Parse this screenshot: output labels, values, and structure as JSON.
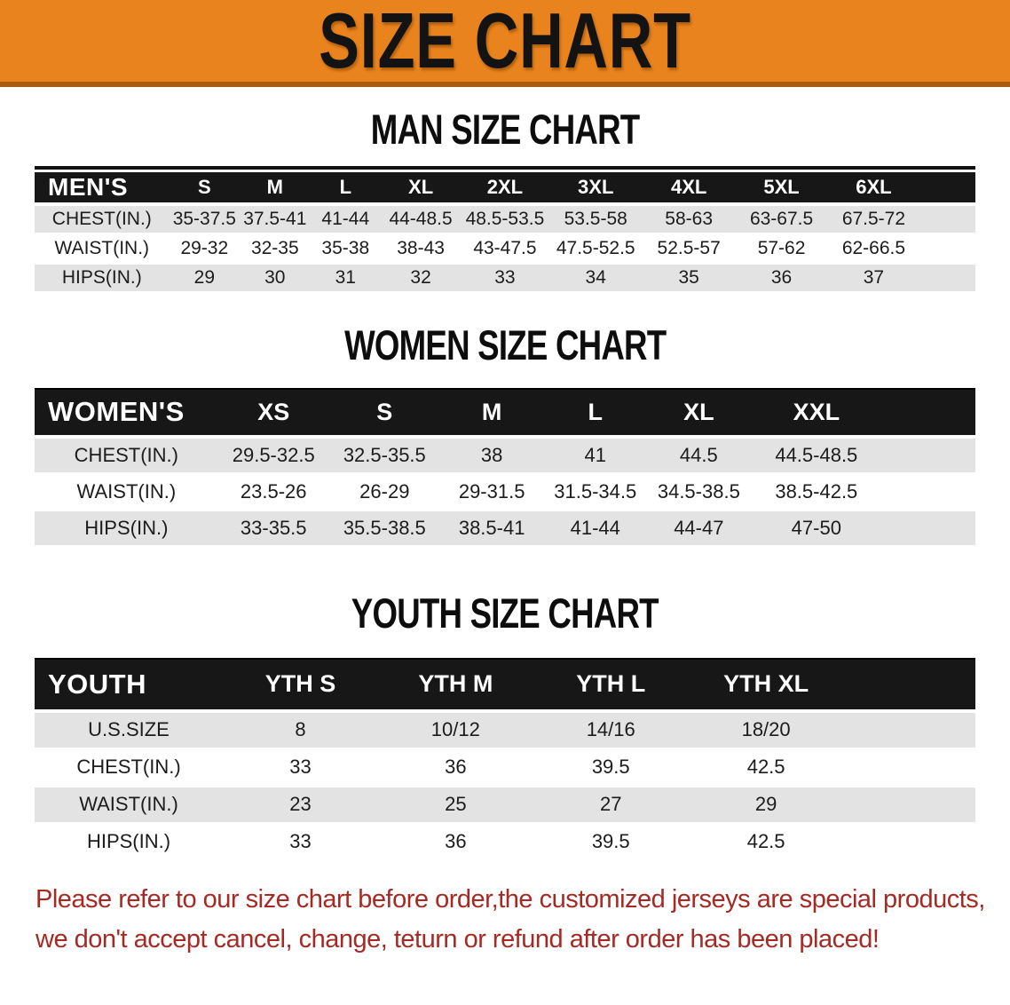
{
  "banner": {
    "title": "SIZE CHART"
  },
  "sections": [
    {
      "id": "men",
      "heading": "MAN SIZE CHART",
      "table": {
        "label": "MEN'S",
        "columns": [
          "S",
          "M",
          "L",
          "XL",
          "2XL",
          "3XL",
          "4XL",
          "5XL",
          "6XL"
        ],
        "rows": [
          {
            "label": "CHEST(IN.)",
            "values": [
              "35-37.5",
              "37.5-41",
              "41-44",
              "44-48.5",
              "48.5-53.5",
              "53.5-58",
              "58-63",
              "63-67.5",
              "67.5-72"
            ]
          },
          {
            "label": "WAIST(IN.)",
            "values": [
              "29-32",
              "32-35",
              "35-38",
              "38-43",
              "43-47.5",
              "47.5-52.5",
              "52.5-57",
              "57-62",
              "62-66.5"
            ]
          },
          {
            "label": "HIPS(IN.)",
            "values": [
              "29",
              "30",
              "31",
              "32",
              "33",
              "34",
              "35",
              "36",
              "37"
            ]
          }
        ]
      }
    },
    {
      "id": "women",
      "heading": "WOMEN SIZE CHART",
      "table": {
        "label": "WOMEN'S",
        "columns": [
          "XS",
          "S",
          "M",
          "L",
          "XL",
          "XXL"
        ],
        "rows": [
          {
            "label": "CHEST(IN.)",
            "values": [
              "29.5-32.5",
              "32.5-35.5",
              "38",
              "41",
              "44.5",
              "44.5-48.5"
            ]
          },
          {
            "label": "WAIST(IN.)",
            "values": [
              "23.5-26",
              "26-29",
              "29-31.5",
              "31.5-34.5",
              "34.5-38.5",
              "38.5-42.5"
            ]
          },
          {
            "label": "HIPS(IN.)",
            "values": [
              "33-35.5",
              "35.5-38.5",
              "38.5-41",
              "41-44",
              "44-47",
              "47-50"
            ]
          }
        ]
      }
    },
    {
      "id": "youth",
      "heading": "YOUTH SIZE CHART",
      "table": {
        "label": "YOUTH",
        "columns": [
          "YTH S",
          "YTH M",
          "YTH L",
          "YTH XL"
        ],
        "rows": [
          {
            "label": "U.S.SIZE",
            "values": [
              "8",
              "10/12",
              "14/16",
              "18/20"
            ]
          },
          {
            "label": "CHEST(IN.)",
            "values": [
              "33",
              "36",
              "39.5",
              "42.5"
            ]
          },
          {
            "label": "WAIST(IN.)",
            "values": [
              "23",
              "25",
              "27",
              "29"
            ]
          },
          {
            "label": "HIPS(IN.)",
            "values": [
              "33",
              "36",
              "39.5",
              "42.5"
            ]
          }
        ]
      }
    }
  ],
  "disclaimer": {
    "line1": "Please refer to our size chart before order,the customized jerseys are special products,",
    "line2": "we don't accept cancel, change, teturn or refund after order has been placed!"
  },
  "colors": {
    "banner_orange": "#E8831D",
    "banner_border": "#A85C10",
    "header_black": "#171717",
    "row_gray": "#E3E3E3",
    "disclaimer_red": "#A62A24"
  }
}
